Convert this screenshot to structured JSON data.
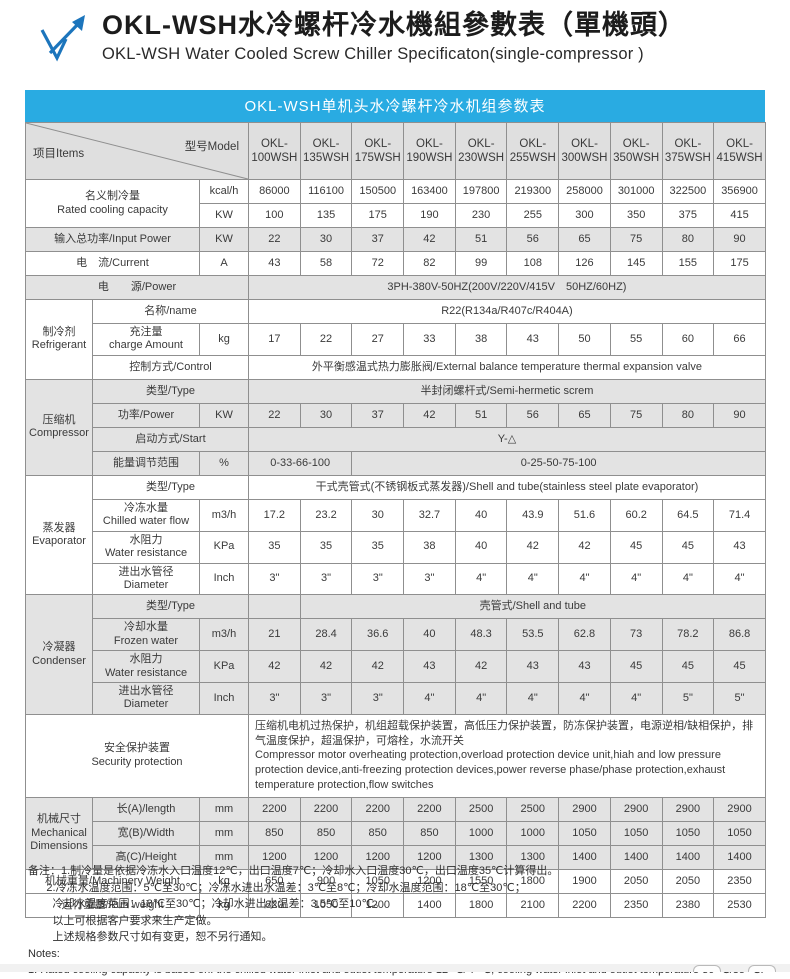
{
  "page": {
    "title_zh": "OKL-WSH水冷螺杆冷水機組參數表（單機頭）",
    "title_en": "OKL-WSH Water Cooled Screw Chiller Specificaton(single-compressor )"
  },
  "colors": {
    "caption_blue": "#29abe2",
    "logo_blue": "#1c75bc",
    "shade_gray": "#e3e3e3",
    "border_gray": "#8f8f8f"
  },
  "table": {
    "caption": "OKL-WSH单机头水冷螺杆冷水机组参数表",
    "header": {
      "items_label": "项目Items",
      "model_label": "型号Model",
      "models": [
        "OKL-100WSH",
        "OKL-135WSH",
        "OKL-175WSH",
        "OKL-190WSH",
        "OKL-230WSH",
        "OKL-255WSH",
        "OKL-300WSH",
        "OKL-350WSH",
        "OKL-375WSH",
        "OKL-415WSH"
      ]
    },
    "body_rows": [
      {
        "shade": false,
        "cells": [
          {
            "t": "名义制冷量\nRated cooling capacity",
            "cs": 2,
            "rs": 2,
            "cls": "lbl"
          },
          {
            "t": "kcal/h",
            "cls": "unit"
          },
          {
            "t": "86000"
          },
          {
            "t": "116100"
          },
          {
            "t": "150500"
          },
          {
            "t": "163400"
          },
          {
            "t": "197800"
          },
          {
            "t": "219300"
          },
          {
            "t": "258000"
          },
          {
            "t": "301000"
          },
          {
            "t": "322500"
          },
          {
            "t": "356900"
          }
        ]
      },
      {
        "shade": false,
        "cells": [
          {
            "t": "KW",
            "cls": "unit"
          },
          {
            "t": "100"
          },
          {
            "t": "135"
          },
          {
            "t": "175"
          },
          {
            "t": "190"
          },
          {
            "t": "230"
          },
          {
            "t": "255"
          },
          {
            "t": "300"
          },
          {
            "t": "350"
          },
          {
            "t": "375"
          },
          {
            "t": "415"
          }
        ]
      },
      {
        "shade": true,
        "cells": [
          {
            "t": "输入总功率/Input Power",
            "cs": 2,
            "cls": "lbl"
          },
          {
            "t": "KW",
            "cls": "unit"
          },
          {
            "t": "22"
          },
          {
            "t": "30"
          },
          {
            "t": "37"
          },
          {
            "t": "42"
          },
          {
            "t": "51"
          },
          {
            "t": "56"
          },
          {
            "t": "65"
          },
          {
            "t": "75"
          },
          {
            "t": "80"
          },
          {
            "t": "90"
          }
        ]
      },
      {
        "shade": false,
        "cells": [
          {
            "t": "电　流/Current",
            "cs": 2,
            "cls": "lbl"
          },
          {
            "t": "A",
            "cls": "unit"
          },
          {
            "t": "43"
          },
          {
            "t": "58"
          },
          {
            "t": "72"
          },
          {
            "t": "82"
          },
          {
            "t": "99"
          },
          {
            "t": "108"
          },
          {
            "t": "126"
          },
          {
            "t": "145"
          },
          {
            "t": "155"
          },
          {
            "t": "175"
          }
        ]
      },
      {
        "shade": true,
        "cells": [
          {
            "t": "电　　源/Power",
            "cs": 3,
            "cls": "lbl"
          },
          {
            "t": "3PH-380V-50HZ(200V/220V/415V　50HZ/60HZ)",
            "cs": 10
          }
        ]
      },
      {
        "shade": false,
        "cells": [
          {
            "t": "制冷剂\nRefrigerant",
            "rs": 3,
            "cls": "lbl"
          },
          {
            "t": "名称/name",
            "cs": 2,
            "cls": "lbl"
          },
          {
            "t": "R22(R134a/R407c/R404A)",
            "cs": 10
          }
        ]
      },
      {
        "shade": false,
        "cells": [
          {
            "t": "充注量\ncharge Amount",
            "cls": "lbl"
          },
          {
            "t": "kg",
            "cls": "unit"
          },
          {
            "t": "17"
          },
          {
            "t": "22"
          },
          {
            "t": "27"
          },
          {
            "t": "33"
          },
          {
            "t": "38"
          },
          {
            "t": "43"
          },
          {
            "t": "50"
          },
          {
            "t": "55"
          },
          {
            "t": "60"
          },
          {
            "t": "66"
          }
        ]
      },
      {
        "shade": false,
        "cells": [
          {
            "t": "控制方式/Control",
            "cs": 2,
            "cls": "lbl"
          },
          {
            "t": "外平衡感温式热力膨胀阀/External balance temperature thermal expansion valve",
            "cs": 10
          }
        ]
      },
      {
        "shade": true,
        "cells": [
          {
            "t": "压缩机\nCompressor",
            "rs": 4,
            "cls": "lbl"
          },
          {
            "t": "类型/Type",
            "cs": 2,
            "cls": "lbl"
          },
          {
            "t": "半封闭螺杆式/Semi-hermetic screm",
            "cs": 10
          }
        ]
      },
      {
        "shade": true,
        "cells": [
          {
            "t": "功率/Power",
            "cls": "lbl"
          },
          {
            "t": "KW",
            "cls": "unit"
          },
          {
            "t": "22"
          },
          {
            "t": "30"
          },
          {
            "t": "37"
          },
          {
            "t": "42"
          },
          {
            "t": "51"
          },
          {
            "t": "56"
          },
          {
            "t": "65"
          },
          {
            "t": "75"
          },
          {
            "t": "80"
          },
          {
            "t": "90"
          }
        ]
      },
      {
        "shade": true,
        "cells": [
          {
            "t": "启动方式/Start",
            "cs": 2,
            "cls": "lbl"
          },
          {
            "t": "Y-△",
            "cs": 10
          }
        ]
      },
      {
        "shade": true,
        "cells": [
          {
            "t": "能量调节范围",
            "cls": "lbl"
          },
          {
            "t": "%",
            "cls": "unit"
          },
          {
            "t": "0-33-66-100",
            "cs": 2
          },
          {
            "t": "0-25-50-75-100",
            "cs": 8
          }
        ]
      },
      {
        "shade": false,
        "cells": [
          {
            "t": "蒸发器\nEvaporator",
            "rs": 4,
            "cls": "lbl"
          },
          {
            "t": "类型/Type",
            "cs": 2,
            "cls": "lbl"
          },
          {
            "t": "干式壳管式(不锈钢板式蒸发器)/Shell and tube(stainless steel plate evaporator)",
            "cs": 10
          }
        ]
      },
      {
        "shade": false,
        "cells": [
          {
            "t": "冷冻水量\nChilled water flow",
            "cls": "lbl"
          },
          {
            "t": "m3/h",
            "cls": "unit"
          },
          {
            "t": "17.2"
          },
          {
            "t": "23.2"
          },
          {
            "t": "30"
          },
          {
            "t": "32.7"
          },
          {
            "t": "40"
          },
          {
            "t": "43.9"
          },
          {
            "t": "51.6"
          },
          {
            "t": "60.2"
          },
          {
            "t": "64.5"
          },
          {
            "t": "71.4"
          }
        ]
      },
      {
        "shade": false,
        "cells": [
          {
            "t": "水阻力\nWater resistance",
            "cls": "lbl"
          },
          {
            "t": "KPa",
            "cls": "unit"
          },
          {
            "t": "35"
          },
          {
            "t": "35"
          },
          {
            "t": "35"
          },
          {
            "t": "38"
          },
          {
            "t": "40"
          },
          {
            "t": "42"
          },
          {
            "t": "42"
          },
          {
            "t": "45"
          },
          {
            "t": "45"
          },
          {
            "t": "43"
          }
        ]
      },
      {
        "shade": false,
        "cells": [
          {
            "t": "进出水管径\nDiameter",
            "cls": "lbl"
          },
          {
            "t": "Inch",
            "cls": "unit"
          },
          {
            "t": "3\""
          },
          {
            "t": "3\""
          },
          {
            "t": "3\""
          },
          {
            "t": "3\""
          },
          {
            "t": "4\""
          },
          {
            "t": "4\""
          },
          {
            "t": "4\""
          },
          {
            "t": "4\""
          },
          {
            "t": "4\""
          },
          {
            "t": "4\""
          }
        ]
      },
      {
        "shade": true,
        "cells": [
          {
            "t": "冷凝器\nCondenser",
            "rs": 4,
            "cls": "lbl"
          },
          {
            "t": "类型/Type",
            "cs": 2,
            "cls": "lbl"
          },
          {
            "t": ""
          },
          {
            "t": "壳管式/Shell and tube",
            "cs": 9
          }
        ]
      },
      {
        "shade": true,
        "cells": [
          {
            "t": "冷却水量\nFrozen water",
            "cls": "lbl"
          },
          {
            "t": "m3/h",
            "cls": "unit"
          },
          {
            "t": "21"
          },
          {
            "t": "28.4"
          },
          {
            "t": "36.6"
          },
          {
            "t": "40"
          },
          {
            "t": "48.3"
          },
          {
            "t": "53.5"
          },
          {
            "t": "62.8"
          },
          {
            "t": "73"
          },
          {
            "t": "78.2"
          },
          {
            "t": "86.8"
          }
        ]
      },
      {
        "shade": true,
        "cells": [
          {
            "t": "水阻力\nWater resistance",
            "cls": "lbl"
          },
          {
            "t": "KPa",
            "cls": "unit"
          },
          {
            "t": "42"
          },
          {
            "t": "42"
          },
          {
            "t": "42"
          },
          {
            "t": "43"
          },
          {
            "t": "42"
          },
          {
            "t": "43"
          },
          {
            "t": "43"
          },
          {
            "t": "45"
          },
          {
            "t": "45"
          },
          {
            "t": "45"
          }
        ]
      },
      {
        "shade": true,
        "cells": [
          {
            "t": "进出水管径\nDiameter",
            "cls": "lbl"
          },
          {
            "t": "Inch",
            "cls": "unit"
          },
          {
            "t": "3\""
          },
          {
            "t": "3\""
          },
          {
            "t": "3\""
          },
          {
            "t": "4\""
          },
          {
            "t": "4\""
          },
          {
            "t": "4\""
          },
          {
            "t": "4\""
          },
          {
            "t": "4\""
          },
          {
            "t": "5\""
          },
          {
            "t": "5\""
          }
        ]
      },
      {
        "shade": false,
        "cells": [
          {
            "t": "安全保护装置\nSecurity protection",
            "cs": 3,
            "cls": "lbl"
          },
          {
            "t": "压缩机电机过热保护，机组超载保护装置，高低压力保护装置，防冻保护装置，电源逆相/缺相保护，排气温度保护，超温保护，可熔栓，水流开关\nCompressor motor overheating protection,overload protection device unit,hiah and low pressure protection device,anti-freezing protection devices,power reverse phase/phase protection,exhaust temperature protection,flow switches",
            "cs": 10,
            "cls": "left"
          }
        ]
      },
      {
        "shade": true,
        "cells": [
          {
            "t": "机械尺寸\nMechanical\nDimensions",
            "rs": 3,
            "cls": "lbl"
          },
          {
            "t": "长(A)/length",
            "cls": "lbl"
          },
          {
            "t": "mm",
            "cls": "unit"
          },
          {
            "t": "2200"
          },
          {
            "t": "2200"
          },
          {
            "t": "2200"
          },
          {
            "t": "2200"
          },
          {
            "t": "2500"
          },
          {
            "t": "2500"
          },
          {
            "t": "2900"
          },
          {
            "t": "2900"
          },
          {
            "t": "2900"
          },
          {
            "t": "2900"
          }
        ]
      },
      {
        "shade": true,
        "cells": [
          {
            "t": "宽(B)/Width",
            "cls": "lbl"
          },
          {
            "t": "mm",
            "cls": "unit"
          },
          {
            "t": "850"
          },
          {
            "t": "850"
          },
          {
            "t": "850"
          },
          {
            "t": "850"
          },
          {
            "t": "1000"
          },
          {
            "t": "1000"
          },
          {
            "t": "1050"
          },
          {
            "t": "1050"
          },
          {
            "t": "1050"
          },
          {
            "t": "1050"
          }
        ]
      },
      {
        "shade": true,
        "cells": [
          {
            "t": "高(C)/Height",
            "cls": "lbl"
          },
          {
            "t": "mm",
            "cls": "unit"
          },
          {
            "t": "1200"
          },
          {
            "t": "1200"
          },
          {
            "t": "1200"
          },
          {
            "t": "1200"
          },
          {
            "t": "1300"
          },
          {
            "t": "1300"
          },
          {
            "t": "1400"
          },
          {
            "t": "1400"
          },
          {
            "t": "1400"
          },
          {
            "t": "1400"
          }
        ]
      },
      {
        "shade": false,
        "cells": [
          {
            "t": "机械重量/Machinery Weight",
            "cs": 2,
            "cls": "lbl"
          },
          {
            "t": "kg",
            "cls": "unit"
          },
          {
            "t": "650"
          },
          {
            "t": "900"
          },
          {
            "t": "1050"
          },
          {
            "t": "1200"
          },
          {
            "t": "1550"
          },
          {
            "t": "1800"
          },
          {
            "t": "1900"
          },
          {
            "t": "2050"
          },
          {
            "t": "2050"
          },
          {
            "t": "2350"
          }
        ]
      },
      {
        "shade": false,
        "cells": [
          {
            "t": "运行重量/Run weight",
            "cs": 2,
            "cls": "lbl"
          },
          {
            "t": "kg",
            "cls": "unit"
          },
          {
            "t": "820"
          },
          {
            "t": "1050"
          },
          {
            "t": "1200"
          },
          {
            "t": "1400"
          },
          {
            "t": "1800"
          },
          {
            "t": "2100"
          },
          {
            "t": "2200"
          },
          {
            "t": "2350"
          },
          {
            "t": "2380"
          },
          {
            "t": "2530"
          }
        ]
      }
    ]
  },
  "notes": {
    "lines": [
      "备注：1.制冷量是依据冷冻水入口温度12℃，出口温度7℃；冷却水入口温度30℃，出口温度35℃计算得出。",
      "      2.冷冻水温度范围：5℃至30℃；冷冻水进出水温差：3℃至8℃；冷却水温度范围：18℃至30℃；",
      "        冷却水温度范围：18℃至30℃；冷却水进出水温差：3.5℃至10℃。",
      "        以上可根据客户要求来生产定做。",
      "        上述规格参数尺寸如有变更，恕不另行通知。",
      "Notes:",
      "1. Rated cooling capacity is based on: the chilled water inlet and outlet temperature 12 ℃/ 7 ℃; cooling water inlet and outlet temperature 30 ℃/35 ℃."
    ]
  }
}
